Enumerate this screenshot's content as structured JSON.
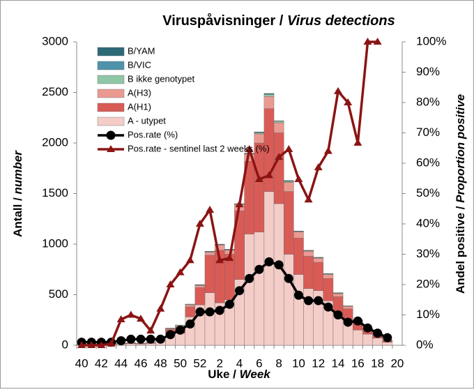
{
  "chart_data": {
    "type": "bar",
    "stacked": true,
    "title": [
      "Viruspåvisninger /",
      "Virus detections"
    ],
    "x_label": [
      "Uke /",
      "Week"
    ],
    "y_label": [
      "Antall /",
      "number"
    ],
    "y2_label": [
      "Andel positive /",
      "Proportion positive"
    ],
    "categories": [
      "40",
      null,
      "42",
      null,
      "44",
      null,
      "46",
      null,
      "48",
      null,
      "50",
      null,
      "52",
      null,
      "2",
      null,
      "4",
      null,
      "6",
      null,
      "8",
      null,
      "10",
      null,
      "12",
      null,
      "14",
      null,
      "16",
      null,
      "18",
      null,
      "20"
    ],
    "ylim": [
      0,
      3000
    ],
    "yticks": [
      0,
      500,
      1000,
      1500,
      2000,
      2500,
      3000
    ],
    "y2lim": [
      0,
      100
    ],
    "y2ticks": [
      {
        "value": 0,
        "label": "0%"
      },
      {
        "value": 10,
        "label": "10%"
      },
      {
        "value": 20,
        "label": "20%"
      },
      {
        "value": 30,
        "label": "30%"
      },
      {
        "value": 40,
        "label": "40%"
      },
      {
        "value": 50,
        "label": "50%"
      },
      {
        "value": 60,
        "label": "60%"
      },
      {
        "value": 70,
        "label": "70%"
      },
      {
        "value": 80,
        "label": "80%"
      },
      {
        "value": 90,
        "label": "90%"
      },
      {
        "value": 100,
        "label": "100%"
      }
    ],
    "legend": "upper left",
    "series": [
      {
        "name": "A - utypet",
        "color": "#f4cdc8",
        "values": [
          6,
          5,
          8,
          9,
          12,
          15,
          12,
          18,
          40,
          110,
          120,
          280,
          400,
          520,
          420,
          450,
          650,
          1100,
          1120,
          1520,
          1400,
          900,
          700,
          560,
          540,
          440,
          300,
          240,
          150,
          110,
          70,
          30,
          0
        ]
      },
      {
        "name": "A(H1)",
        "color": "#d95b56",
        "values": [
          3,
          2,
          3,
          5,
          6,
          8,
          6,
          9,
          15,
          45,
          60,
          100,
          170,
          370,
          520,
          450,
          680,
          720,
          880,
          820,
          700,
          620,
          360,
          320,
          280,
          220,
          180,
          120,
          80,
          50,
          40,
          15,
          0
        ]
      },
      {
        "name": "A(H3)",
        "color": "#eb9a92",
        "values": [
          1,
          1,
          1,
          1,
          2,
          2,
          2,
          2,
          3,
          10,
          12,
          20,
          20,
          30,
          50,
          40,
          60,
          70,
          90,
          120,
          100,
          90,
          60,
          50,
          40,
          40,
          30,
          25,
          15,
          8,
          8,
          4,
          0
        ]
      },
      {
        "name": "B ikke genotypet",
        "color": "#8fc7a6",
        "values": [
          0,
          0,
          0,
          0,
          0,
          0,
          0,
          1,
          1,
          3,
          6,
          5,
          5,
          5,
          5,
          5,
          5,
          5,
          10,
          20,
          15,
          10,
          5,
          5,
          5,
          5,
          5,
          3,
          3,
          1,
          1,
          0,
          0
        ]
      },
      {
        "name": "B/VIC",
        "color": "#4f93ab",
        "values": [
          0,
          0,
          0,
          0,
          0,
          0,
          0,
          0,
          0,
          1,
          1,
          1,
          2,
          2,
          2,
          2,
          2,
          3,
          5,
          5,
          3,
          5,
          3,
          3,
          3,
          3,
          3,
          1,
          1,
          1,
          0,
          0,
          0
        ]
      },
      {
        "name": "B/YAM",
        "color": "#2d6a78",
        "values": [
          0,
          0,
          0,
          0,
          0,
          0,
          0,
          0,
          0,
          1,
          1,
          1,
          3,
          3,
          3,
          3,
          3,
          2,
          5,
          5,
          2,
          5,
          2,
          2,
          2,
          2,
          2,
          1,
          1,
          0,
          1,
          1,
          0
        ]
      },
      {
        "name": "Pos.rate (%)",
        "type": "line",
        "axis": "y2",
        "marker": "circle",
        "color": "#000000",
        "values": [
          1,
          1,
          1,
          1,
          1.5,
          2,
          2,
          2,
          2,
          3.5,
          5,
          7,
          11,
          11,
          11.5,
          13.5,
          18,
          22,
          25,
          27.5,
          26.5,
          22,
          16.5,
          14.7,
          14.7,
          12.6,
          10,
          7.6,
          8,
          5.7,
          4,
          2.5,
          null
        ]
      },
      {
        "name": "Pos.rate - sentinel last 2 weeks (%)",
        "type": "line",
        "axis": "y2",
        "marker": "triangle",
        "color": "#8b1414",
        "values": [
          0,
          0,
          0,
          0.5,
          8.5,
          10,
          8.7,
          4.8,
          12,
          20,
          24,
          28,
          40,
          44.6,
          28,
          28.7,
          46.4,
          64.6,
          54.7,
          56,
          62,
          64.6,
          54.7,
          48,
          58.6,
          64,
          83.7,
          80,
          66.7,
          100,
          100,
          null,
          null
        ]
      }
    ]
  }
}
